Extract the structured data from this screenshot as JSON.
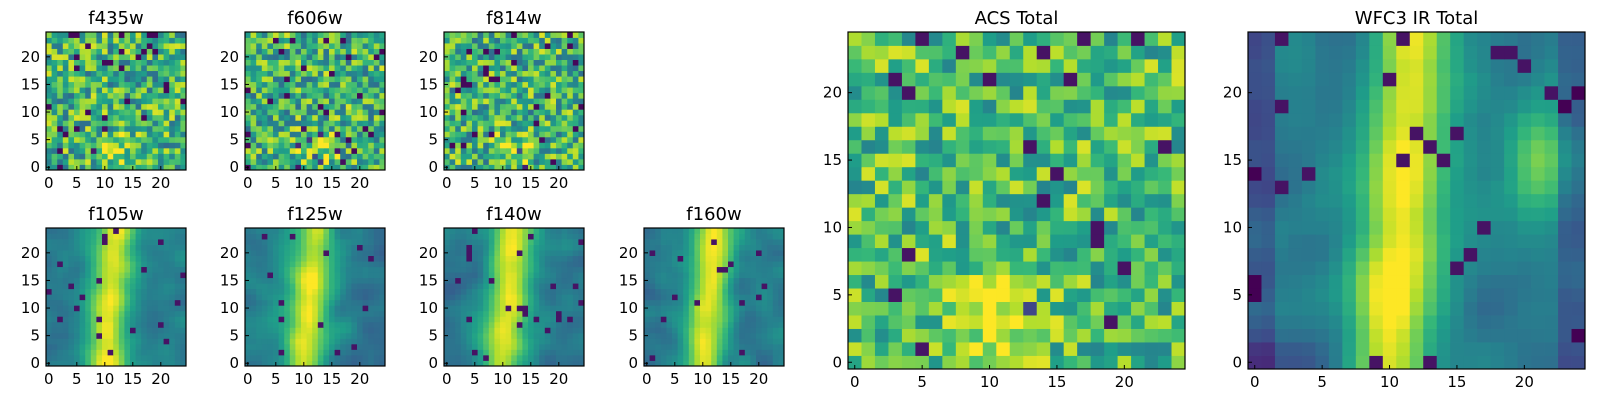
{
  "chart_data": [
    {
      "type": "heatmap",
      "title": "f435w",
      "xticks": [
        "0",
        "5",
        "10",
        "15",
        "20"
      ],
      "yticks": [
        "0",
        "5",
        "10",
        "15",
        "20"
      ],
      "xlim": [
        0,
        24
      ],
      "ylim": [
        0,
        24
      ],
      "grid_size": 25,
      "colormap": "viridis",
      "pattern": "noise",
      "seed": 11
    },
    {
      "type": "heatmap",
      "title": "f606w",
      "xticks": [
        "0",
        "5",
        "10",
        "15",
        "20"
      ],
      "yticks": [
        "0",
        "5",
        "10",
        "15",
        "20"
      ],
      "xlim": [
        0,
        24
      ],
      "ylim": [
        0,
        24
      ],
      "grid_size": 25,
      "colormap": "viridis",
      "pattern": "noise",
      "seed": 23
    },
    {
      "type": "heatmap",
      "title": "f814w",
      "xticks": [
        "0",
        "5",
        "10",
        "15",
        "20"
      ],
      "yticks": [
        "0",
        "5",
        "10",
        "15",
        "20"
      ],
      "xlim": [
        0,
        24
      ],
      "ylim": [
        0,
        24
      ],
      "grid_size": 25,
      "colormap": "viridis",
      "pattern": "noise",
      "seed": 37
    },
    {
      "type": "heatmap",
      "title": "f105w",
      "xticks": [
        "0",
        "5",
        "10",
        "15",
        "20"
      ],
      "yticks": [
        "0",
        "5",
        "10",
        "15",
        "20"
      ],
      "xlim": [
        0,
        24
      ],
      "ylim": [
        0,
        24
      ],
      "grid_size": 25,
      "colormap": "viridis",
      "pattern": "blob",
      "seed": 41
    },
    {
      "type": "heatmap",
      "title": "f125w",
      "xticks": [
        "0",
        "5",
        "10",
        "15",
        "20"
      ],
      "yticks": [
        "0",
        "5",
        "10",
        "15",
        "20"
      ],
      "xlim": [
        0,
        24
      ],
      "ylim": [
        0,
        24
      ],
      "grid_size": 25,
      "colormap": "viridis",
      "pattern": "blob",
      "seed": 53
    },
    {
      "type": "heatmap",
      "title": "f140w",
      "xticks": [
        "0",
        "5",
        "10",
        "15",
        "20"
      ],
      "yticks": [
        "0",
        "5",
        "10",
        "15",
        "20"
      ],
      "xlim": [
        0,
        24
      ],
      "ylim": [
        0,
        24
      ],
      "grid_size": 25,
      "colormap": "viridis",
      "pattern": "blob",
      "seed": 67
    },
    {
      "type": "heatmap",
      "title": "f160w",
      "xticks": [
        "0",
        "5",
        "10",
        "15",
        "20"
      ],
      "yticks": [
        "0",
        "5",
        "10",
        "15",
        "20"
      ],
      "xlim": [
        0,
        24
      ],
      "ylim": [
        0,
        24
      ],
      "grid_size": 25,
      "colormap": "viridis",
      "pattern": "blob",
      "seed": 79
    },
    {
      "type": "heatmap",
      "title": "ACS Total",
      "xticks": [
        "0",
        "5",
        "10",
        "15",
        "20"
      ],
      "yticks": [
        "0",
        "5",
        "10",
        "15",
        "20"
      ],
      "xlim": [
        0,
        24
      ],
      "ylim": [
        0,
        24
      ],
      "grid_size": 25,
      "colormap": "viridis",
      "pattern": "acs",
      "seed": 83
    },
    {
      "type": "heatmap",
      "title": "WFC3 IR Total",
      "xticks": [
        "0",
        "5",
        "10",
        "15",
        "20"
      ],
      "yticks": [
        "0",
        "5",
        "10",
        "15",
        "20"
      ],
      "xlim": [
        0,
        24
      ],
      "ylim": [
        0,
        24
      ],
      "grid_size": 25,
      "colormap": "viridis",
      "pattern": "wfc3",
      "seed": 97
    }
  ]
}
